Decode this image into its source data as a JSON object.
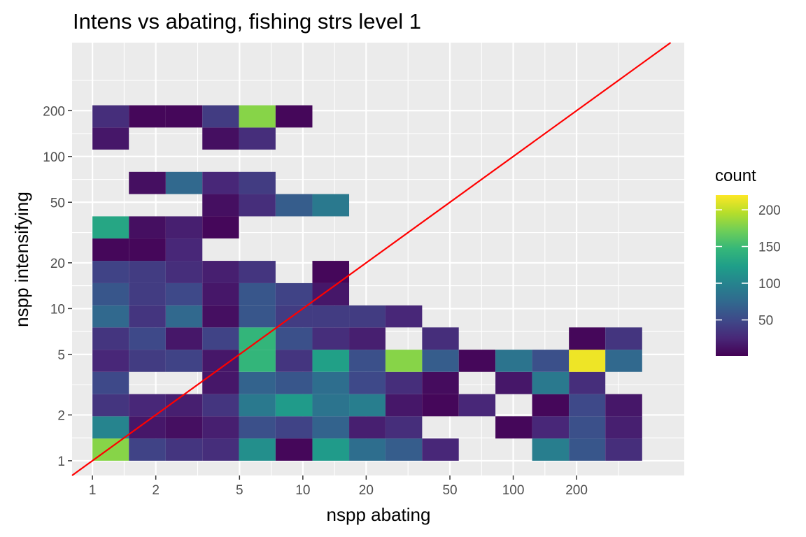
{
  "chart_data": {
    "type": "heatmap",
    "title": "Intens vs abating, fishing strs level 1",
    "xlabel": "nspp abating",
    "ylabel": "nspp intensifying",
    "x_scale": "log10",
    "y_scale": "log10",
    "xlim": [
      0.8,
      650
    ],
    "ylim": [
      0.8,
      560
    ],
    "x_ticks": [
      1,
      2,
      5,
      10,
      20,
      50,
      100,
      200
    ],
    "x_tick_labels": [
      "1",
      "2",
      "5",
      "10",
      "20",
      "50",
      "100",
      "200"
    ],
    "y_ticks": [
      1,
      2,
      5,
      10,
      20,
      50,
      100,
      200
    ],
    "y_tick_labels": [
      "1",
      "2",
      "5",
      "10",
      "20",
      "50",
      "100",
      "200"
    ],
    "x_bin_edges": [
      1,
      1.49,
      2.23,
      3.33,
      4.97,
      7.42,
      11.1,
      16.6,
      24.7,
      36.9,
      55.1,
      82.3,
      123,
      184,
      274,
      410
    ],
    "y_bin_edges": [
      1,
      1.4,
      1.96,
      2.74,
      3.84,
      5.37,
      7.52,
      10.5,
      14.7,
      20.6,
      28.9,
      40.4,
      56.6,
      79.2,
      111,
      155,
      217,
      304,
      425
    ],
    "cells": [
      {
        "xi": 0,
        "yi": 0,
        "count": 180
      },
      {
        "xi": 1,
        "yi": 0,
        "count": 45
      },
      {
        "xi": 2,
        "yi": 0,
        "count": 35
      },
      {
        "xi": 3,
        "yi": 0,
        "count": 30
      },
      {
        "xi": 4,
        "yi": 0,
        "count": 110
      },
      {
        "xi": 5,
        "yi": 0,
        "count": 5
      },
      {
        "xi": 6,
        "yi": 0,
        "count": 120
      },
      {
        "xi": 7,
        "yi": 0,
        "count": 80
      },
      {
        "xi": 8,
        "yi": 0,
        "count": 65
      },
      {
        "xi": 9,
        "yi": 0,
        "count": 25
      },
      {
        "xi": 12,
        "yi": 0,
        "count": 95
      },
      {
        "xi": 13,
        "yi": 0,
        "count": 60
      },
      {
        "xi": 14,
        "yi": 0,
        "count": 30
      },
      {
        "xi": 0,
        "yi": 1,
        "count": 100
      },
      {
        "xi": 1,
        "yi": 1,
        "count": 15
      },
      {
        "xi": 2,
        "yi": 1,
        "count": 10
      },
      {
        "xi": 3,
        "yi": 1,
        "count": 20
      },
      {
        "xi": 4,
        "yi": 1,
        "count": 55
      },
      {
        "xi": 5,
        "yi": 1,
        "count": 45
      },
      {
        "xi": 6,
        "yi": 1,
        "count": 70
      },
      {
        "xi": 7,
        "yi": 1,
        "count": 20
      },
      {
        "xi": 8,
        "yi": 1,
        "count": 30
      },
      {
        "xi": 11,
        "yi": 1,
        "count": 5
      },
      {
        "xi": 12,
        "yi": 1,
        "count": 25
      },
      {
        "xi": 13,
        "yi": 1,
        "count": 55
      },
      {
        "xi": 14,
        "yi": 1,
        "count": 20
      },
      {
        "xi": 0,
        "yi": 2,
        "count": 35
      },
      {
        "xi": 1,
        "yi": 2,
        "count": 25
      },
      {
        "xi": 2,
        "yi": 2,
        "count": 20
      },
      {
        "xi": 3,
        "yi": 2,
        "count": 35
      },
      {
        "xi": 4,
        "yi": 2,
        "count": 90
      },
      {
        "xi": 5,
        "yi": 2,
        "count": 120
      },
      {
        "xi": 6,
        "yi": 2,
        "count": 85
      },
      {
        "xi": 7,
        "yi": 2,
        "count": 95
      },
      {
        "xi": 8,
        "yi": 2,
        "count": 15
      },
      {
        "xi": 9,
        "yi": 2,
        "count": 5
      },
      {
        "xi": 10,
        "yi": 2,
        "count": 25
      },
      {
        "xi": 12,
        "yi": 2,
        "count": 5
      },
      {
        "xi": 13,
        "yi": 2,
        "count": 50
      },
      {
        "xi": 14,
        "yi": 2,
        "count": 15
      },
      {
        "xi": 0,
        "yi": 3,
        "count": 50
      },
      {
        "xi": 3,
        "yi": 3,
        "count": 15
      },
      {
        "xi": 4,
        "yi": 3,
        "count": 70
      },
      {
        "xi": 5,
        "yi": 3,
        "count": 60
      },
      {
        "xi": 6,
        "yi": 3,
        "count": 80
      },
      {
        "xi": 7,
        "yi": 3,
        "count": 50
      },
      {
        "xi": 8,
        "yi": 3,
        "count": 30
      },
      {
        "xi": 9,
        "yi": 3,
        "count": 8
      },
      {
        "xi": 11,
        "yi": 3,
        "count": 15
      },
      {
        "xi": 12,
        "yi": 3,
        "count": 90
      },
      {
        "xi": 13,
        "yi": 3,
        "count": 30
      },
      {
        "xi": 0,
        "yi": 4,
        "count": 25
      },
      {
        "xi": 1,
        "yi": 4,
        "count": 40
      },
      {
        "xi": 2,
        "yi": 4,
        "count": 45
      },
      {
        "xi": 3,
        "yi": 4,
        "count": 15
      },
      {
        "xi": 4,
        "yi": 4,
        "count": 145
      },
      {
        "xi": 5,
        "yi": 4,
        "count": 35
      },
      {
        "xi": 6,
        "yi": 4,
        "count": 125
      },
      {
        "xi": 7,
        "yi": 4,
        "count": 55
      },
      {
        "xi": 8,
        "yi": 4,
        "count": 180
      },
      {
        "xi": 9,
        "yi": 4,
        "count": 65
      },
      {
        "xi": 10,
        "yi": 4,
        "count": 5
      },
      {
        "xi": 11,
        "yi": 4,
        "count": 85
      },
      {
        "xi": 12,
        "yi": 4,
        "count": 55
      },
      {
        "xi": 13,
        "yi": 4,
        "count": 215
      },
      {
        "xi": 14,
        "yi": 4,
        "count": 75
      },
      {
        "xi": 0,
        "yi": 5,
        "count": 35
      },
      {
        "xi": 1,
        "yi": 5,
        "count": 50
      },
      {
        "xi": 2,
        "yi": 5,
        "count": 15
      },
      {
        "xi": 3,
        "yi": 5,
        "count": 45
      },
      {
        "xi": 4,
        "yi": 5,
        "count": 145
      },
      {
        "xi": 5,
        "yi": 5,
        "count": 55
      },
      {
        "xi": 6,
        "yi": 5,
        "count": 30
      },
      {
        "xi": 7,
        "yi": 5,
        "count": 20
      },
      {
        "xi": 9,
        "yi": 5,
        "count": 30
      },
      {
        "xi": 13,
        "yi": 5,
        "count": 5
      },
      {
        "xi": 14,
        "yi": 5,
        "count": 35
      },
      {
        "xi": 0,
        "yi": 6,
        "count": 75
      },
      {
        "xi": 1,
        "yi": 6,
        "count": 35
      },
      {
        "xi": 2,
        "yi": 6,
        "count": 75
      },
      {
        "xi": 3,
        "yi": 6,
        "count": 10
      },
      {
        "xi": 4,
        "yi": 6,
        "count": 60
      },
      {
        "xi": 5,
        "yi": 6,
        "count": 40
      },
      {
        "xi": 6,
        "yi": 6,
        "count": 40
      },
      {
        "xi": 7,
        "yi": 6,
        "count": 40
      },
      {
        "xi": 8,
        "yi": 6,
        "count": 25
      },
      {
        "xi": 0,
        "yi": 7,
        "count": 60
      },
      {
        "xi": 1,
        "yi": 7,
        "count": 40
      },
      {
        "xi": 2,
        "yi": 7,
        "count": 50
      },
      {
        "xi": 3,
        "yi": 7,
        "count": 15
      },
      {
        "xi": 4,
        "yi": 7,
        "count": 60
      },
      {
        "xi": 5,
        "yi": 7,
        "count": 45
      },
      {
        "xi": 6,
        "yi": 7,
        "count": 15
      },
      {
        "xi": 0,
        "yi": 8,
        "count": 45
      },
      {
        "xi": 1,
        "yi": 8,
        "count": 40
      },
      {
        "xi": 2,
        "yi": 8,
        "count": 30
      },
      {
        "xi": 3,
        "yi": 8,
        "count": 20
      },
      {
        "xi": 4,
        "yi": 8,
        "count": 35
      },
      {
        "xi": 6,
        "yi": 8,
        "count": 5
      },
      {
        "xi": 0,
        "yi": 9,
        "count": 5
      },
      {
        "xi": 1,
        "yi": 9,
        "count": 5
      },
      {
        "xi": 2,
        "yi": 9,
        "count": 25
      },
      {
        "xi": 0,
        "yi": 10,
        "count": 130
      },
      {
        "xi": 1,
        "yi": 10,
        "count": 10
      },
      {
        "xi": 2,
        "yi": 10,
        "count": 20
      },
      {
        "xi": 3,
        "yi": 10,
        "count": 5
      },
      {
        "xi": 3,
        "yi": 11,
        "count": 10
      },
      {
        "xi": 4,
        "yi": 11,
        "count": 30
      },
      {
        "xi": 5,
        "yi": 11,
        "count": 65
      },
      {
        "xi": 6,
        "yi": 11,
        "count": 90
      },
      {
        "xi": 1,
        "yi": 12,
        "count": 10
      },
      {
        "xi": 2,
        "yi": 12,
        "count": 75
      },
      {
        "xi": 3,
        "yi": 12,
        "count": 25
      },
      {
        "xi": 4,
        "yi": 12,
        "count": 40
      },
      {
        "xi": 0,
        "yi": 14,
        "count": 15
      },
      {
        "xi": 3,
        "yi": 14,
        "count": 10
      },
      {
        "xi": 4,
        "yi": 14,
        "count": 30
      },
      {
        "xi": 0,
        "yi": 15,
        "count": 30
      },
      {
        "xi": 1,
        "yi": 15,
        "count": 5
      },
      {
        "xi": 2,
        "yi": 15,
        "count": 5
      },
      {
        "xi": 3,
        "yi": 15,
        "count": 40
      },
      {
        "xi": 4,
        "yi": 15,
        "count": 180
      },
      {
        "xi": 5,
        "yi": 15,
        "count": 5
      }
    ],
    "reference_line": {
      "type": "identity",
      "color": "#ff0000"
    },
    "legend": {
      "title": "count",
      "placement": "right",
      "breaks": [
        50,
        100,
        150,
        200
      ],
      "break_labels": [
        "50",
        "100",
        "150",
        "200"
      ],
      "min": 1,
      "max": 220,
      "palette": [
        "#440154",
        "#482878",
        "#3e4989",
        "#31688e",
        "#26828e",
        "#1f9e89",
        "#35b779",
        "#6ece58",
        "#b5de2b",
        "#fde725"
      ]
    },
    "grid": true,
    "panel_background": "#ebebeb",
    "grid_color": "#ffffff"
  }
}
